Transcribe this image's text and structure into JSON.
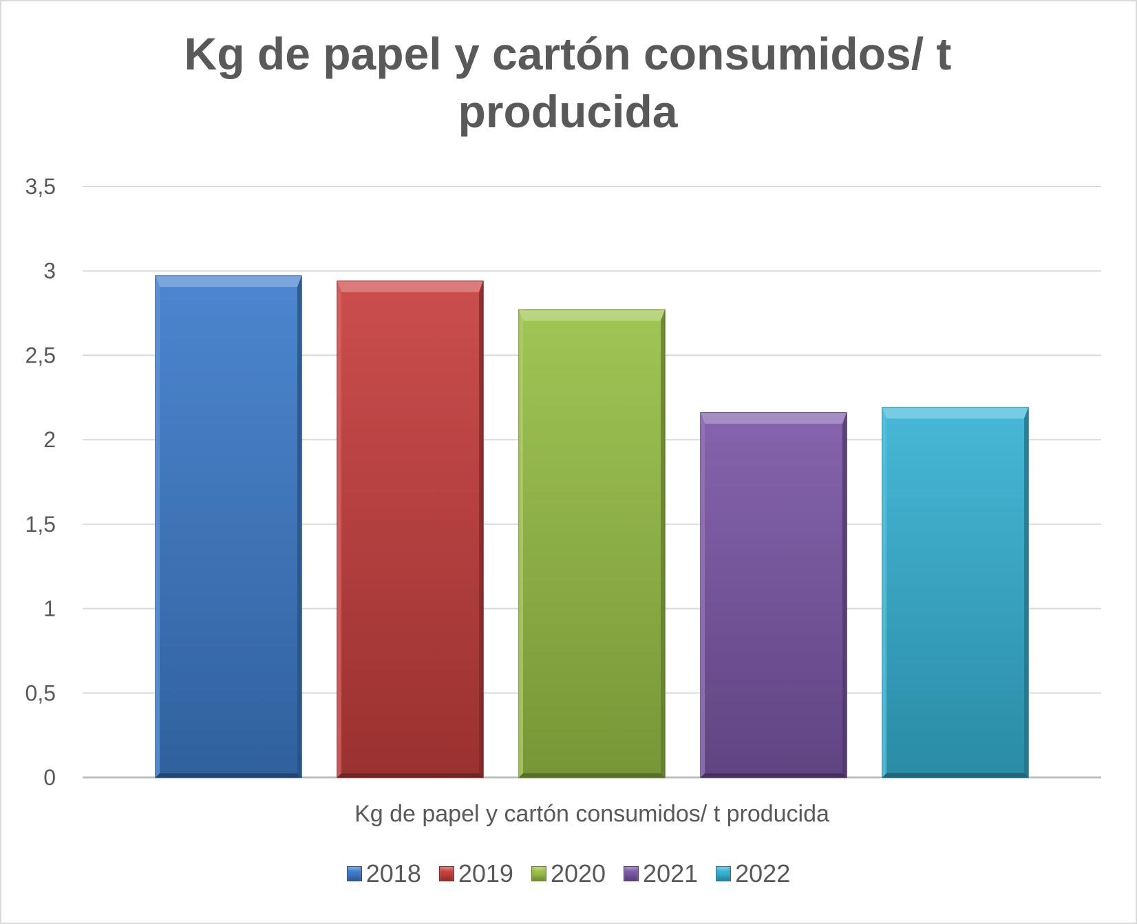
{
  "chart_data": {
    "type": "bar",
    "title": "Kg de papel y cartón consumidos/ t producida",
    "xlabel": "",
    "ylabel": "",
    "categories": [
      "Kg de papel y cartón consumidos/ t producida"
    ],
    "series": [
      {
        "name": "2018",
        "values": [
          2.97
        ],
        "color": "#3d7ccb"
      },
      {
        "name": "2019",
        "values": [
          2.94
        ],
        "color": "#c63f3d"
      },
      {
        "name": "2020",
        "values": [
          2.77
        ],
        "color": "#99c046"
      },
      {
        "name": "2021",
        "values": [
          2.16
        ],
        "color": "#7b57a7"
      },
      {
        "name": "2022",
        "values": [
          2.19
        ],
        "color": "#36b2d4"
      }
    ],
    "ylim": [
      0,
      3.5
    ],
    "yticks": [
      "0",
      "0,5",
      "1",
      "1,5",
      "2",
      "2,5",
      "3",
      "3,5"
    ],
    "grid": true,
    "legend": "bottom"
  }
}
